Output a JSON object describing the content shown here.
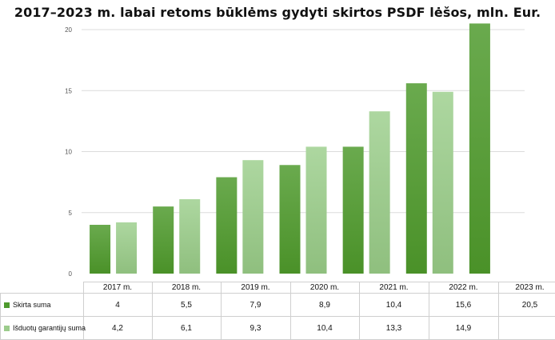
{
  "chart_data": {
    "type": "bar",
    "title": "2017–2023 m. labai retoms būklėms gydyti skirtos PSDF lėšos, mln. Eur.",
    "categories": [
      "2017 m.",
      "2018 m.",
      "2019 m.",
      "2020 m.",
      "2021 m.",
      "2022 m.",
      "2023 m."
    ],
    "series": [
      {
        "name": "Skirta suma",
        "values": [
          4,
          5.5,
          7.9,
          8.9,
          10.4,
          15.6,
          20.5
        ],
        "labels": [
          "4",
          "5,5",
          "7,9",
          "8,9",
          "10,4",
          "15,6",
          "20,5"
        ],
        "color": "#4e9a2e"
      },
      {
        "name": "Išduotų garantijų suma",
        "values": [
          4.2,
          6.1,
          9.3,
          10.4,
          13.3,
          14.9,
          null
        ],
        "labels": [
          "4,2",
          "6,1",
          "9,3",
          "10,4",
          "13,3",
          "14,9",
          ""
        ],
        "color": "#9ccc8c"
      }
    ],
    "ylim": [
      0,
      20
    ],
    "yticks": [
      "0",
      "5",
      "10",
      "15",
      "20"
    ],
    "grid": true,
    "legend": "data-table-below"
  }
}
